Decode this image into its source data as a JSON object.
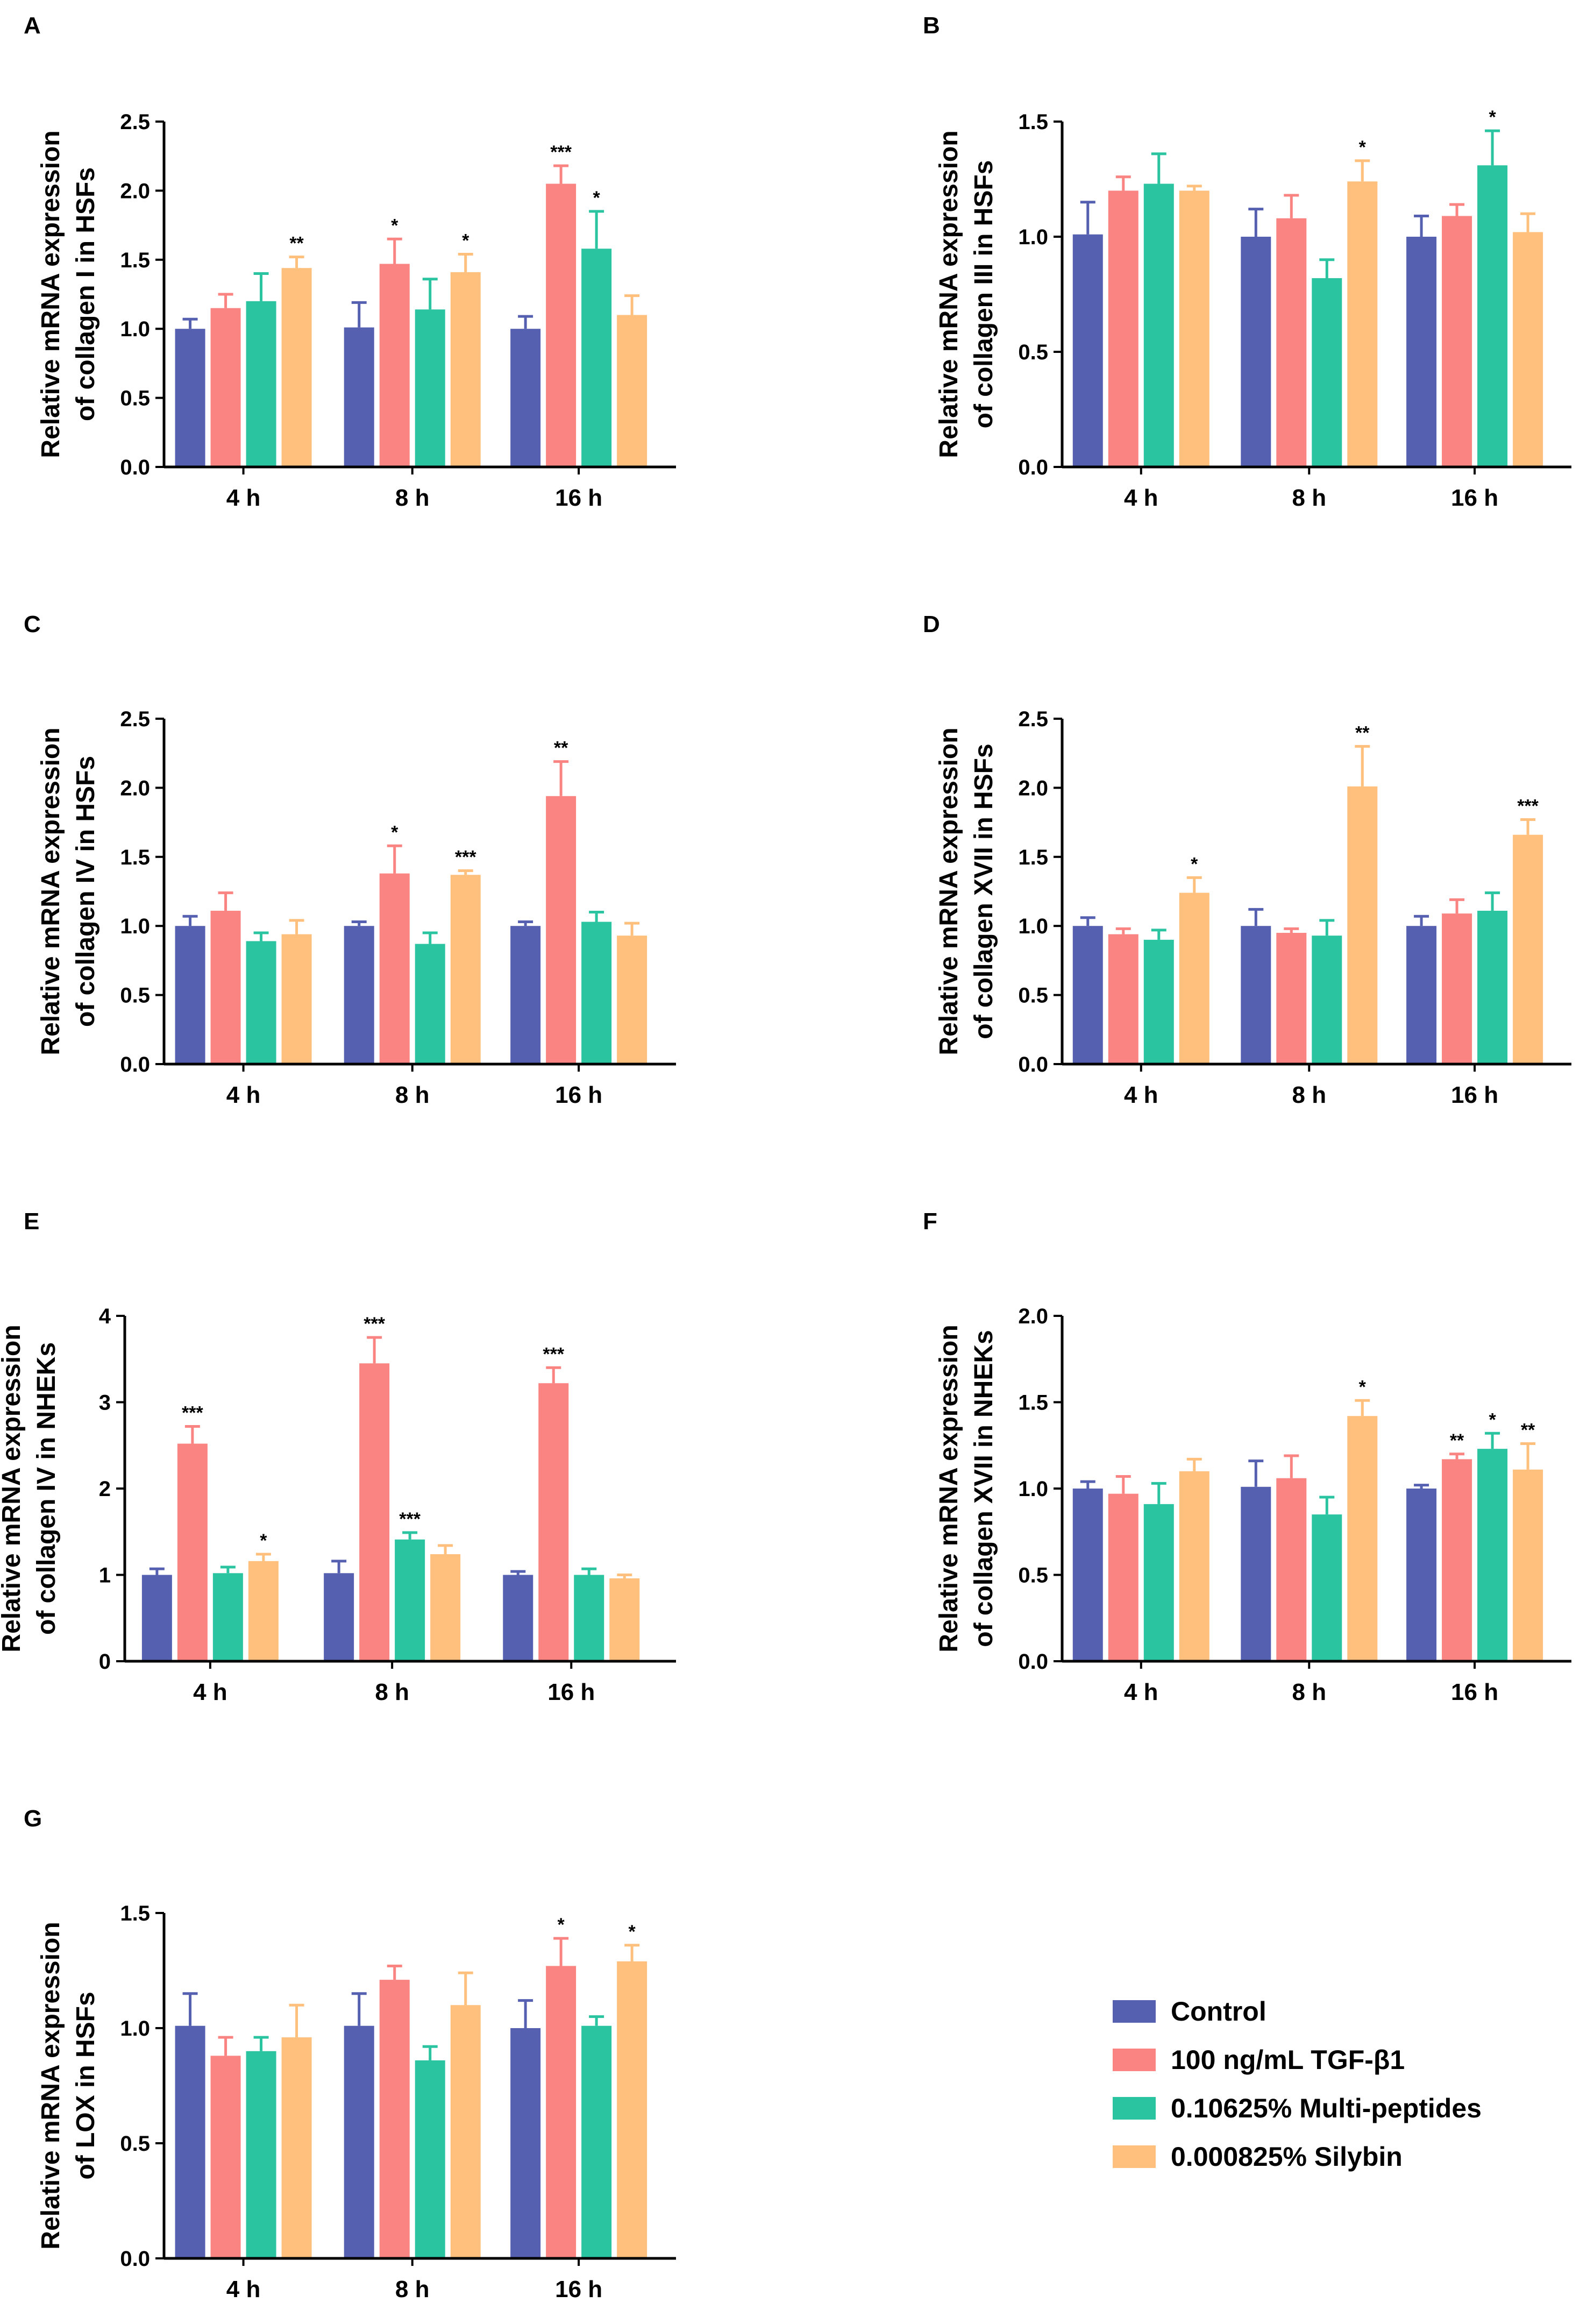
{
  "series": [
    {
      "name": "Control",
      "color": "#5660b0"
    },
    {
      "name": "100 ng/mL TGF-β1",
      "color": "#fa8482"
    },
    {
      "name": "0.10625% Multi-peptides",
      "color": "#2ac4a0"
    },
    {
      "name": "0.000825% Silybin",
      "color": "#fec07c"
    }
  ],
  "chart_data": [
    {
      "panel": "A",
      "type": "bar",
      "ylabel": [
        "Relative mRNA expression",
        "of collagen I  in HSFs"
      ],
      "categories": [
        "4 h",
        "8 h",
        "16 h"
      ],
      "ylim": [
        0,
        2.5
      ],
      "ticks": [
        "0.0",
        "0.5",
        "1.0",
        "1.5",
        "2.0",
        "2.5"
      ],
      "values": [
        [
          1.0,
          1.15,
          1.2,
          1.44
        ],
        [
          1.01,
          1.47,
          1.14,
          1.41
        ],
        [
          1.0,
          2.05,
          1.58,
          1.1
        ]
      ],
      "errors": [
        [
          0.07,
          0.1,
          0.2,
          0.08
        ],
        [
          0.18,
          0.18,
          0.22,
          0.13
        ],
        [
          0.09,
          0.13,
          0.27,
          0.14
        ]
      ],
      "sig": [
        [
          "",
          "",
          "",
          "**"
        ],
        [
          "",
          "*",
          "",
          "*"
        ],
        [
          "",
          "***",
          "*",
          ""
        ]
      ]
    },
    {
      "panel": "B",
      "type": "bar",
      "ylabel": [
        "Relative mRNA expression",
        "of collagen III in HSFs"
      ],
      "categories": [
        "4 h",
        "8 h",
        "16 h"
      ],
      "ylim": [
        0,
        1.5
      ],
      "ticks": [
        "0.0",
        "0.5",
        "1.0",
        "1.5"
      ],
      "values": [
        [
          1.01,
          1.2,
          1.23,
          1.2
        ],
        [
          1.0,
          1.08,
          0.82,
          1.24
        ],
        [
          1.0,
          1.09,
          1.31,
          1.02
        ]
      ],
      "errors": [
        [
          0.14,
          0.06,
          0.13,
          0.02
        ],
        [
          0.12,
          0.1,
          0.08,
          0.09
        ],
        [
          0.09,
          0.05,
          0.15,
          0.08
        ]
      ],
      "sig": [
        [
          "",
          "",
          "",
          ""
        ],
        [
          "",
          "",
          "",
          "*"
        ],
        [
          "",
          "",
          "*",
          ""
        ]
      ]
    },
    {
      "panel": "C",
      "type": "bar",
      "ylabel": [
        "Relative mRNA expression",
        "of collagen IV  in HSFs"
      ],
      "categories": [
        "4 h",
        "8 h",
        "16 h"
      ],
      "ylim": [
        0,
        2.5
      ],
      "ticks": [
        "0.0",
        "0.5",
        "1.0",
        "1.5",
        "2.0",
        "2.5"
      ],
      "values": [
        [
          1.0,
          1.11,
          0.89,
          0.94
        ],
        [
          1.0,
          1.38,
          0.87,
          1.37
        ],
        [
          1.0,
          1.94,
          1.03,
          0.93
        ]
      ],
      "errors": [
        [
          0.07,
          0.13,
          0.06,
          0.1
        ],
        [
          0.03,
          0.2,
          0.08,
          0.03
        ],
        [
          0.03,
          0.25,
          0.07,
          0.09
        ]
      ],
      "sig": [
        [
          "",
          "",
          "",
          ""
        ],
        [
          "",
          "*",
          "",
          "***"
        ],
        [
          "",
          "**",
          "",
          ""
        ]
      ]
    },
    {
      "panel": "D",
      "type": "bar",
      "ylabel": [
        "Relative mRNA expression",
        "of collagen XVII in HSFs"
      ],
      "categories": [
        "4 h",
        "8 h",
        "16 h"
      ],
      "ylim": [
        0,
        2.5
      ],
      "ticks": [
        "0.0",
        "0.5",
        "1.0",
        "1.5",
        "2.0",
        "2.5"
      ],
      "values": [
        [
          1.0,
          0.94,
          0.9,
          1.24
        ],
        [
          1.0,
          0.95,
          0.93,
          2.01
        ],
        [
          1.0,
          1.09,
          1.11,
          1.66
        ]
      ],
      "errors": [
        [
          0.06,
          0.04,
          0.07,
          0.11
        ],
        [
          0.12,
          0.03,
          0.11,
          0.29
        ],
        [
          0.07,
          0.1,
          0.13,
          0.11
        ]
      ],
      "sig": [
        [
          "",
          "",
          "",
          "*"
        ],
        [
          "",
          "",
          "",
          "**"
        ],
        [
          "",
          "",
          "",
          "***"
        ]
      ]
    },
    {
      "panel": "E",
      "type": "bar",
      "ylabel": [
        "Relative mRNA expression",
        "of collagen IV in NHEKs"
      ],
      "categories": [
        "4 h",
        "8 h",
        "16 h"
      ],
      "ylim": [
        0,
        4
      ],
      "ticks": [
        "0",
        "1",
        "2",
        "3",
        "4"
      ],
      "values": [
        [
          1.0,
          2.52,
          1.02,
          1.16
        ],
        [
          1.02,
          3.45,
          1.41,
          1.24
        ],
        [
          1.0,
          3.22,
          1.0,
          0.96
        ]
      ],
      "errors": [
        [
          0.07,
          0.2,
          0.07,
          0.08
        ],
        [
          0.14,
          0.3,
          0.08,
          0.1
        ],
        [
          0.04,
          0.18,
          0.07,
          0.04
        ]
      ],
      "sig": [
        [
          "",
          "***",
          "",
          "*"
        ],
        [
          "",
          "***",
          "***",
          ""
        ],
        [
          "",
          "***",
          "",
          ""
        ]
      ]
    },
    {
      "panel": "F",
      "type": "bar",
      "ylabel": [
        "Relative mRNA expression",
        "of collagen XVII in NHEKs"
      ],
      "categories": [
        "4 h",
        "8 h",
        "16 h"
      ],
      "ylim": [
        0,
        2.0
      ],
      "ticks": [
        "0.0",
        "0.5",
        "1.0",
        "1.5",
        "2.0"
      ],
      "values": [
        [
          1.0,
          0.97,
          0.91,
          1.1
        ],
        [
          1.01,
          1.06,
          0.85,
          1.42
        ],
        [
          1.0,
          1.17,
          1.23,
          1.11
        ]
      ],
      "errors": [
        [
          0.04,
          0.1,
          0.12,
          0.07
        ],
        [
          0.15,
          0.13,
          0.1,
          0.09
        ],
        [
          0.02,
          0.03,
          0.09,
          0.15
        ]
      ],
      "sig": [
        [
          "",
          "",
          "",
          ""
        ],
        [
          "",
          "",
          "",
          "*"
        ],
        [
          "",
          "**",
          "*",
          "**"
        ]
      ]
    },
    {
      "panel": "G",
      "type": "bar",
      "ylabel": [
        "Relative mRNA expression",
        "of LOX in HSFs"
      ],
      "categories": [
        "4 h",
        "8 h",
        "16 h"
      ],
      "ylim": [
        0,
        1.5
      ],
      "ticks": [
        "0.0",
        "0.5",
        "1.0",
        "1.5"
      ],
      "values": [
        [
          1.01,
          0.88,
          0.9,
          0.96
        ],
        [
          1.01,
          1.21,
          0.86,
          1.1
        ],
        [
          1.0,
          1.27,
          1.01,
          1.29
        ]
      ],
      "errors": [
        [
          0.14,
          0.08,
          0.06,
          0.14
        ],
        [
          0.14,
          0.06,
          0.06,
          0.14
        ],
        [
          0.12,
          0.12,
          0.04,
          0.07
        ]
      ],
      "sig": [
        [
          "",
          "",
          "",
          ""
        ],
        [
          "",
          "",
          "",
          ""
        ],
        [
          "",
          "*",
          "",
          "*"
        ]
      ]
    }
  ]
}
